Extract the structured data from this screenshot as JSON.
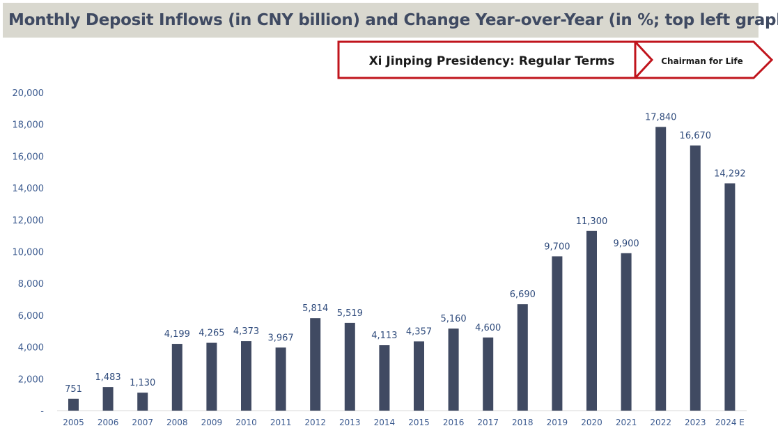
{
  "title": "Monthly Deposit Inflows (in CNY billion) and Change Year-over-Year (in %; top left graph)",
  "banner": {
    "regular_label": "Xi Jinping Presidency: Regular Terms",
    "life_label": "Chairman for Life",
    "border_color": "#c0141c"
  },
  "chart_data": {
    "type": "bar",
    "categories": [
      "2005",
      "2006",
      "2007",
      "2008",
      "2009",
      "2010",
      "2011",
      "2012",
      "2013",
      "2014",
      "2015",
      "2016",
      "2017",
      "2018",
      "2019",
      "2020",
      "2021",
      "2022",
      "2023",
      "2024 E"
    ],
    "values": [
      751,
      1483,
      1130,
      4199,
      4265,
      4373,
      3967,
      5814,
      5519,
      4113,
      4357,
      5160,
      4600,
      6690,
      9700,
      11300,
      9900,
      17840,
      16670,
      14292
    ],
    "data_labels": [
      "751",
      "1,483",
      "1,130",
      "4,199",
      "4,265",
      "4,373",
      "3,967",
      "5,814",
      "5,519",
      "4,113",
      "4,357",
      "5,160",
      "4,600",
      "6,690",
      "9,700",
      "11,300",
      "9,900",
      "17,840",
      "16,670",
      "14,292"
    ],
    "y_ticks": [
      0,
      2000,
      4000,
      6000,
      8000,
      10000,
      12000,
      14000,
      16000,
      18000,
      20000
    ],
    "y_tick_labels": [
      "-",
      "2,000",
      "4,000",
      "6,000",
      "8,000",
      "10,000",
      "12,000",
      "14,000",
      "16,000",
      "18,000",
      "20,000"
    ],
    "ylim": [
      0,
      20000
    ],
    "xlabel": "",
    "ylabel": "",
    "grid": false,
    "bar_color": "#404a62"
  }
}
